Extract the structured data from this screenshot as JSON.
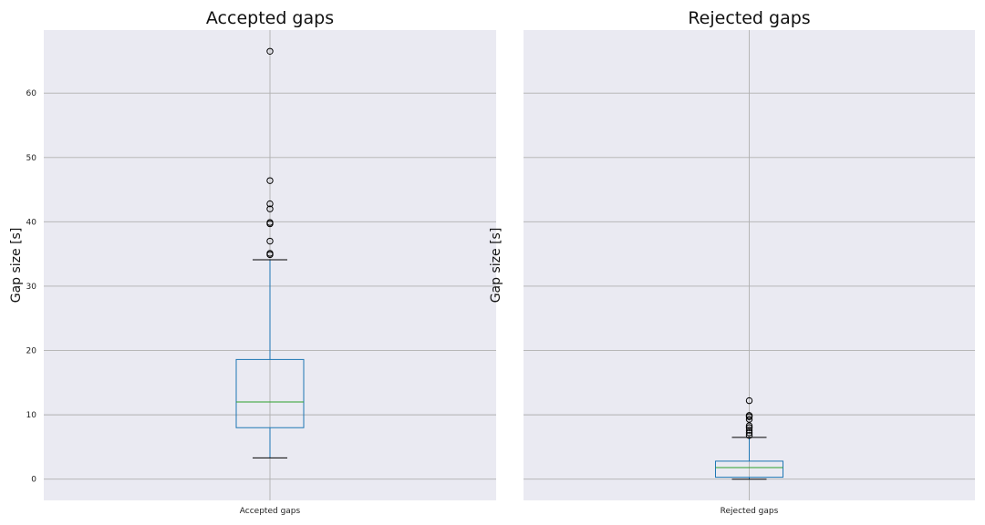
{
  "chart_data": [
    {
      "type": "box",
      "title": "Accepted gaps",
      "xlabel": "",
      "ylabel": "Gap size [s]",
      "ylim": [
        -3.3,
        69.8
      ],
      "yticks": [
        0,
        10,
        20,
        30,
        40,
        50,
        60
      ],
      "grid": true,
      "categories": [
        "Accepted gaps"
      ],
      "box": {
        "whisker_low": 3.3,
        "q1": 8.0,
        "median": 12.0,
        "q3": 18.6,
        "whisker_high": 34.1
      },
      "outliers": [
        34.9,
        35.1,
        37.0,
        39.7,
        39.9,
        42.0,
        42.8,
        46.4,
        66.5
      ],
      "colors": {
        "box": "#1f77b4",
        "median": "#2ca02c",
        "whisker_cap": "#000000",
        "background": "#eaeaf2",
        "grid": "#b0b0b0"
      }
    },
    {
      "type": "box",
      "title": "Rejected gaps",
      "xlabel": "",
      "ylabel": "Gap size [s]",
      "ylim": [
        -3.3,
        69.8
      ],
      "yticks": [
        0,
        10,
        20,
        30,
        40,
        50,
        60
      ],
      "grid": true,
      "categories": [
        "Rejected gaps"
      ],
      "box": {
        "whisker_low": 0.0,
        "q1": 0.3,
        "median": 1.8,
        "q3": 2.8,
        "whisker_high": 6.5
      },
      "outliers": [
        6.8,
        7.2,
        7.6,
        8.0,
        8.3,
        9.3,
        9.7,
        9.9,
        12.2
      ],
      "colors": {
        "box": "#1f77b4",
        "median": "#2ca02c",
        "whisker_cap": "#000000",
        "background": "#eaeaf2",
        "grid": "#b0b0b0"
      }
    }
  ]
}
